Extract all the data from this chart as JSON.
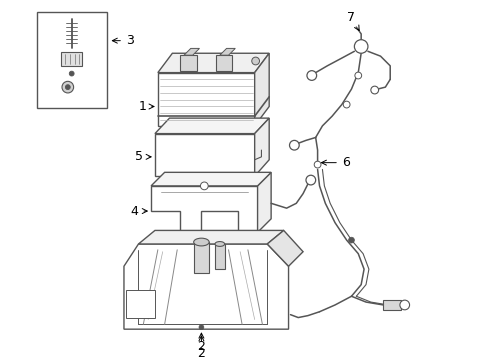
{
  "background_color": "#ffffff",
  "line_color": "#555555",
  "label_color": "#000000",
  "figsize": [
    4.89,
    3.6
  ],
  "dpi": 100,
  "lw_main": 1.0,
  "lw_thin": 0.6,
  "lw_wire": 1.1
}
